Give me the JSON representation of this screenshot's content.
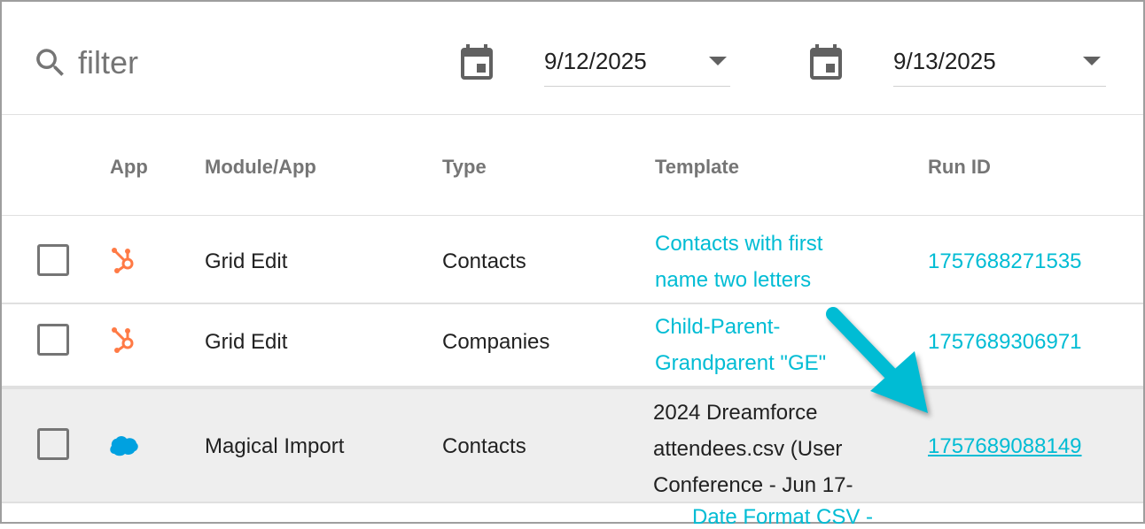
{
  "filter": {
    "placeholder": "filter",
    "icon": "search-icon"
  },
  "date_from": {
    "value": "9/12/2025",
    "icon": "calendar-icon"
  },
  "date_to": {
    "value": "9/13/2025",
    "icon": "calendar-icon"
  },
  "columns": [
    "App",
    "Module/App",
    "Type",
    "Template",
    "Run ID"
  ],
  "rows": [
    {
      "app": "hubspot",
      "module": "Grid Edit",
      "type": "Contacts",
      "template": [
        "Contacts with first",
        "name two letters"
      ],
      "template_link": true,
      "run_id": "1757688271535"
    },
    {
      "app": "hubspot",
      "module": "Grid Edit",
      "type": "Companies",
      "template": [
        "Child-Parent-",
        "Grandparent \"GE\""
      ],
      "template_link": true,
      "run_id": "1757689306971"
    },
    {
      "app": "salesforce",
      "module": "Magical Import",
      "type": "Contacts",
      "template": [
        "2024 Dreamforce",
        "attendees.csv (User",
        "Conference - Jun 17-"
      ],
      "template_link": false,
      "run_id": "1757689088149",
      "highlighted": true
    },
    {
      "template": [
        "Date Format CSV -"
      ]
    }
  ],
  "colors": {
    "accent": "#00bcd4",
    "hubspot": "#ff7a45",
    "salesforce": "#00a1e0",
    "highlight_row": "#eeeeee",
    "arrow": "#00bcd4"
  }
}
